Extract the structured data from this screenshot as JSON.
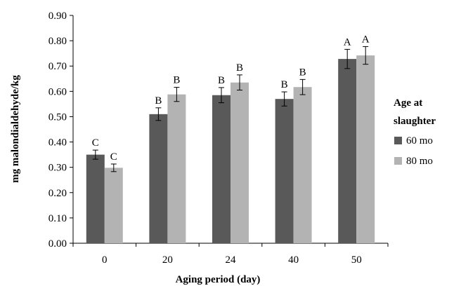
{
  "chart_data": {
    "type": "bar",
    "title": "",
    "xlabel": "Aging period (day)",
    "ylabel": "mg malondialdehyde/kg",
    "ylim": [
      0,
      0.9
    ],
    "ytick_step": 0.1,
    "ytick_labels": [
      "0.00",
      "0.10",
      "0.20",
      "0.30",
      "0.40",
      "0.50",
      "0.60",
      "0.70",
      "0.80",
      "0.90"
    ],
    "grid": false,
    "categories": [
      "0",
      "20",
      "24",
      "40",
      "50"
    ],
    "series": [
      {
        "name": "60 mo",
        "color": "#595959",
        "values": [
          0.35,
          0.51,
          0.585,
          0.57,
          0.728
        ],
        "errors": [
          0.018,
          0.025,
          0.03,
          0.028,
          0.038
        ],
        "labels": [
          "C",
          "B",
          "B",
          "B",
          "A"
        ]
      },
      {
        "name": "80 mo",
        "color": "#b3b3b3",
        "values": [
          0.298,
          0.588,
          0.635,
          0.617,
          0.742
        ],
        "errors": [
          0.015,
          0.028,
          0.03,
          0.03,
          0.035
        ],
        "labels": [
          "C",
          "B",
          "B",
          "B",
          "A"
        ]
      }
    ],
    "legend": {
      "title_lines": [
        "Age at",
        "slaughter"
      ],
      "placement": "right"
    }
  }
}
